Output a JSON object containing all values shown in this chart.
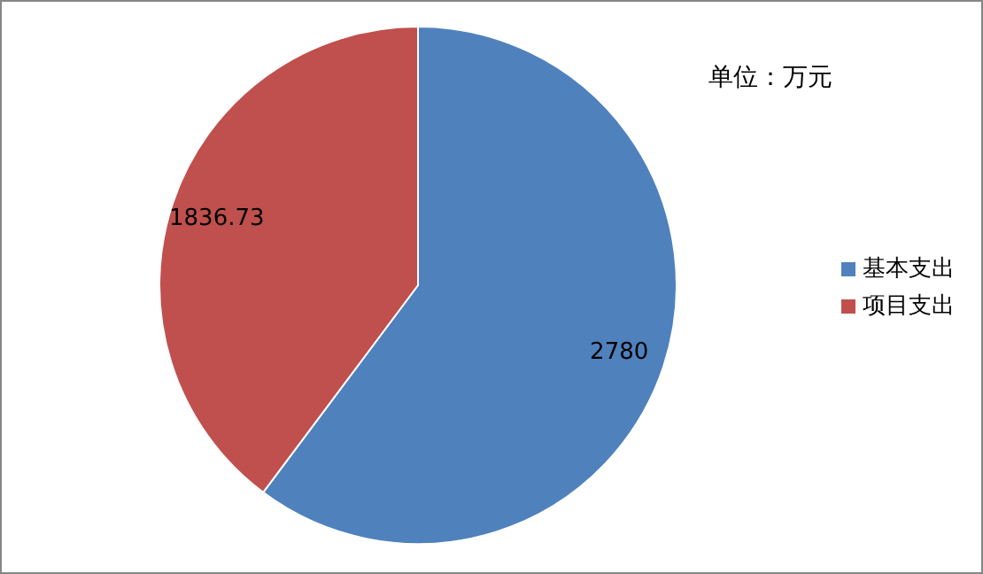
{
  "chart_data": {
    "type": "pie",
    "categories": [
      "基本支出",
      "项目支出"
    ],
    "values": [
      2780,
      1836.73
    ],
    "colors": [
      "#4f81bd",
      "#c0504d"
    ],
    "data_labels": true,
    "legend": "right",
    "annotations": [
      "单位：万元"
    ]
  }
}
